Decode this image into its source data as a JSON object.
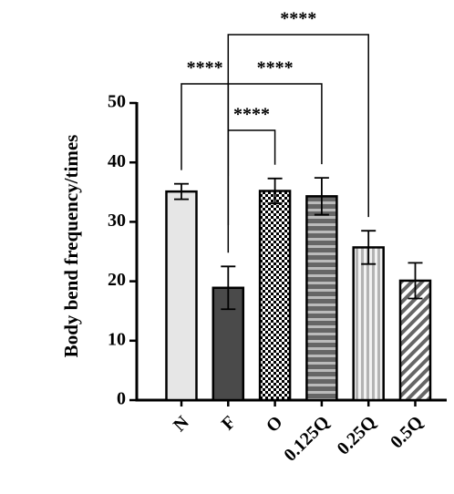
{
  "chart_data": {
    "type": "bar",
    "ylabel": "Body bend frequency/times",
    "categories": [
      "N",
      "F",
      "O",
      "0.125Q",
      "0.25Q",
      "0.5Q"
    ],
    "values": [
      35.1,
      18.9,
      35.2,
      34.3,
      25.7,
      20.1
    ],
    "errors": [
      1.3,
      3.6,
      2.1,
      3.1,
      2.8,
      3.0
    ],
    "colors": [
      "#e6e6e6",
      "#4a4a4a",
      "#000000",
      "#666666",
      "#b3b3b3",
      "#666666"
    ],
    "patterns": [
      "solid",
      "solid",
      "checker",
      "hstripe",
      "vstripe",
      "diagonal"
    ],
    "ylim": [
      0,
      50
    ],
    "yticks": [
      0,
      10,
      20,
      30,
      40,
      50
    ],
    "comparisons": [
      {
        "pair": [
          0,
          1
        ],
        "label": "****"
      },
      {
        "pair": [
          1,
          2
        ],
        "label": "****"
      },
      {
        "pair": [
          1,
          3
        ],
        "label": "****"
      },
      {
        "pair": [
          1,
          4
        ],
        "label": "****"
      }
    ]
  }
}
